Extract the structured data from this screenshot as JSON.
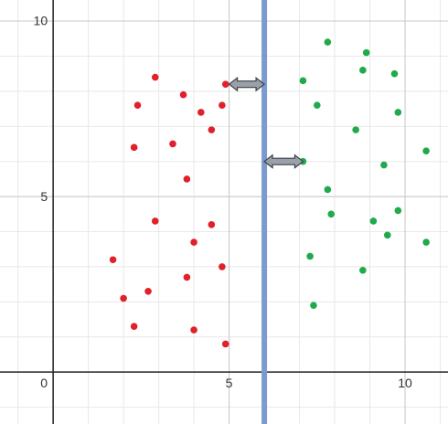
{
  "chart_data": {
    "type": "scatter",
    "xlim": [
      -1.51,
      11.22
    ],
    "ylim": [
      -1.48,
      10.6
    ],
    "xticks": [
      0,
      5,
      10
    ],
    "yticks": [
      5,
      10
    ],
    "grid": true,
    "minor_grid": 1,
    "series": [
      {
        "color": "#e0212b",
        "x": [
          2.9,
          3.7,
          2.4,
          4.2,
          4.8,
          4.9,
          4.5,
          3.4,
          2.3,
          3.8,
          2.9,
          4.5,
          4.0,
          1.7,
          4.8,
          3.8,
          2.7,
          2.0,
          2.3,
          4.0,
          4.9
        ],
        "values": [
          8.4,
          7.9,
          7.6,
          7.4,
          7.6,
          8.2,
          6.9,
          6.5,
          6.4,
          5.5,
          4.3,
          4.2,
          3.7,
          3.2,
          3.0,
          2.7,
          2.3,
          2.1,
          1.3,
          1.2,
          0.8
        ]
      },
      {
        "color": "#1fab4b",
        "x": [
          7.8,
          8.9,
          8.8,
          9.7,
          7.1,
          7.5,
          9.8,
          8.6,
          10.6,
          7.1,
          9.4,
          7.8,
          7.9,
          9.8,
          9.1,
          9.5,
          10.6,
          7.3,
          8.8,
          7.4
        ],
        "values": [
          9.4,
          9.1,
          8.6,
          8.5,
          8.3,
          7.6,
          7.4,
          6.9,
          6.3,
          6.0,
          5.9,
          5.2,
          4.5,
          4.6,
          4.3,
          3.9,
          3.7,
          3.3,
          2.9,
          1.9
        ]
      }
    ],
    "vline": {
      "x": 6,
      "color": "#7b9bcf"
    },
    "arrows": [
      {
        "x": [
          5,
          6
        ],
        "y": 8.2
      },
      {
        "x": [
          6,
          7.1
        ],
        "y": 6
      }
    ]
  }
}
